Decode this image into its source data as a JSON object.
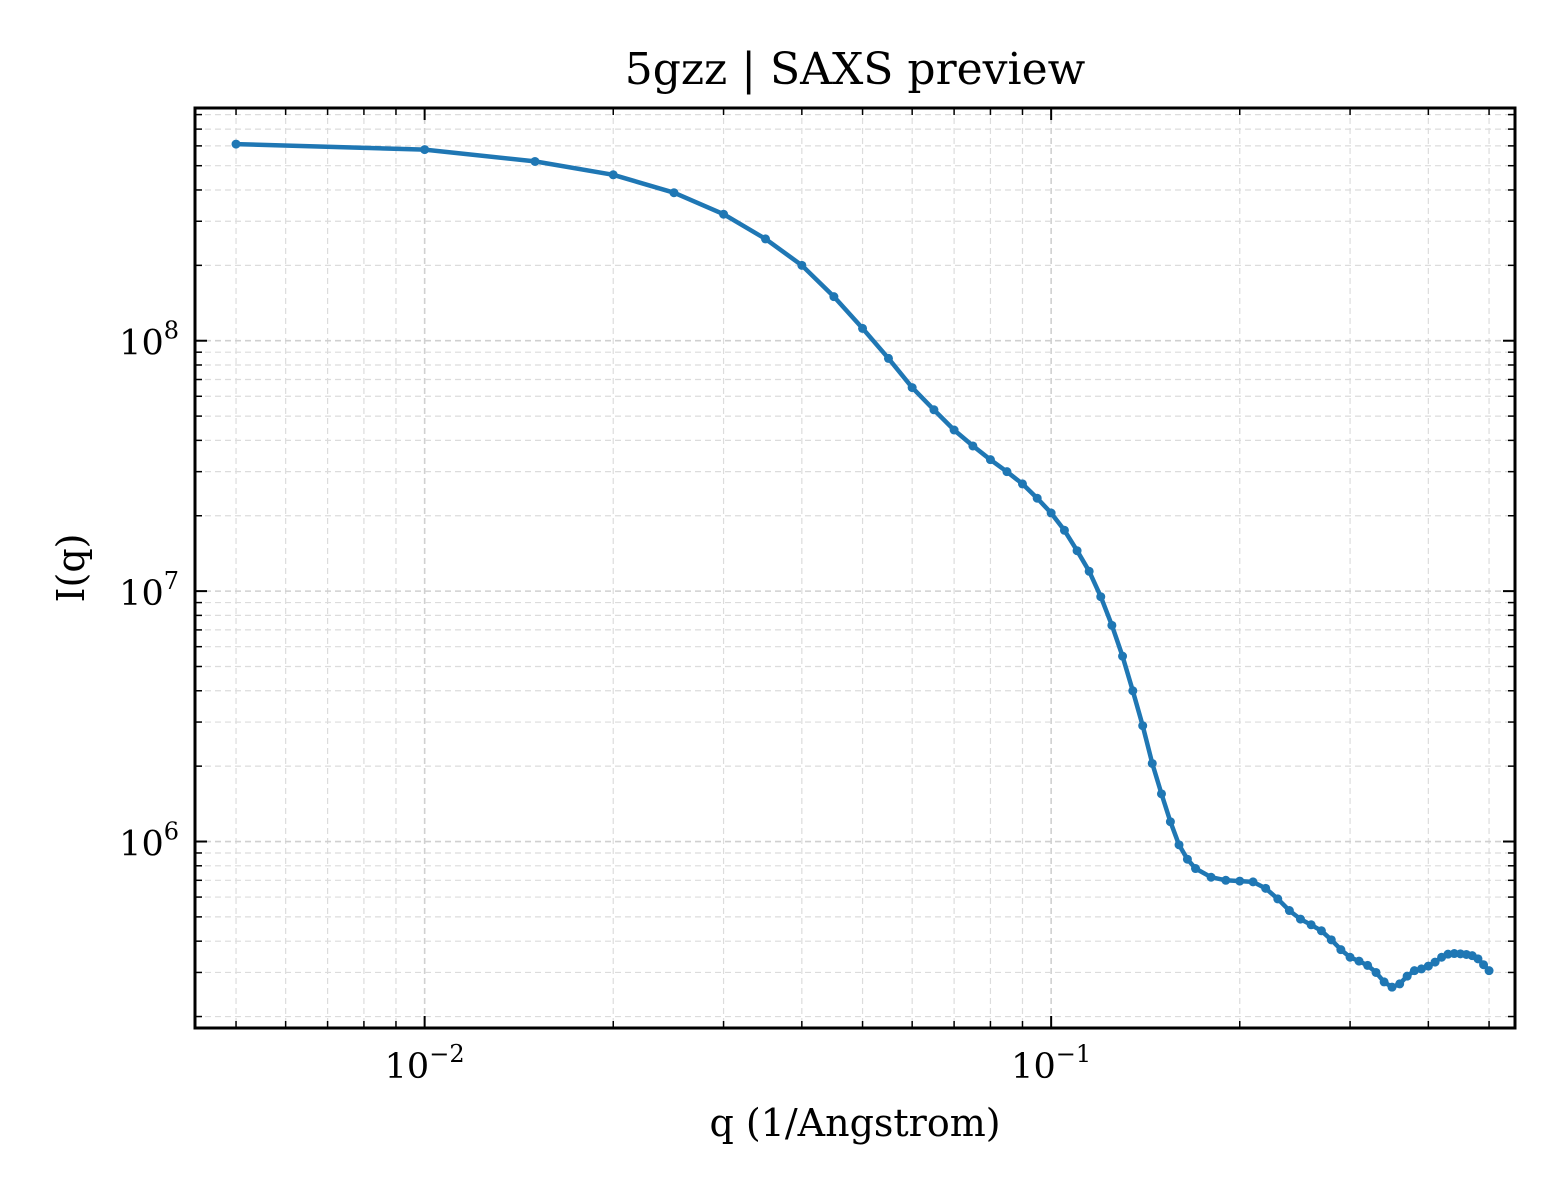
{
  "chart_data": {
    "type": "line",
    "title": "5gzz | SAXS preview",
    "xlabel": "q (1/Angstrom)",
    "ylabel": "I(q)",
    "xscale": "log",
    "yscale": "log",
    "xlim": [
      0.0043,
      0.55
    ],
    "ylim": [
      180000,
      850000000
    ],
    "grid": true,
    "legend": "none",
    "line_color": "#1f77b4",
    "x_ticks": [
      {
        "value": 0.01,
        "base": "10",
        "exp": "−2"
      },
      {
        "value": 0.1,
        "base": "10",
        "exp": "−1"
      }
    ],
    "y_ticks": [
      {
        "value": 1000000,
        "base": "10",
        "exp": "6"
      },
      {
        "value": 10000000,
        "base": "10",
        "exp": "7"
      },
      {
        "value": 100000000,
        "base": "10",
        "exp": "8"
      }
    ],
    "series": [
      {
        "x": [
          0.005,
          0.01,
          0.015,
          0.02,
          0.025,
          0.03,
          0.035,
          0.04,
          0.045,
          0.05,
          0.055,
          0.06,
          0.065,
          0.07,
          0.075,
          0.08,
          0.085,
          0.09,
          0.095,
          0.1,
          0.105,
          0.11,
          0.115,
          0.12,
          0.125,
          0.13,
          0.135,
          0.14,
          0.145,
          0.15,
          0.155,
          0.16,
          0.165,
          0.17,
          0.18,
          0.19,
          0.2,
          0.21,
          0.22,
          0.23,
          0.24,
          0.25,
          0.26,
          0.27,
          0.28,
          0.29,
          0.3,
          0.31,
          0.32,
          0.33,
          0.34,
          0.35,
          0.36,
          0.37,
          0.38,
          0.39,
          0.4,
          0.41,
          0.42,
          0.43,
          0.44,
          0.45,
          0.46,
          0.47,
          0.48,
          0.49,
          0.5
        ],
        "y": [
          610000000,
          580000000,
          520000000,
          460000000,
          390000000,
          320000000,
          255000000,
          200000000,
          150000000,
          112000000,
          85000000,
          65000000,
          53000000,
          44000000,
          38000000,
          33500000,
          30000000,
          26800000,
          23500000,
          20500000,
          17500000,
          14500000,
          12000000,
          9500000,
          7300000,
          5500000,
          4000000,
          2900000,
          2050000,
          1550000,
          1200000,
          970000,
          850000,
          780000,
          720000,
          700000,
          695000,
          690000,
          650000,
          590000,
          530000,
          490000,
          465000,
          440000,
          405000,
          370000,
          345000,
          333000,
          320000,
          300000,
          275000,
          262000,
          270000,
          290000,
          305000,
          310000,
          318000,
          330000,
          345000,
          355000,
          357000,
          356000,
          354000,
          350000,
          340000,
          322000,
          305000
        ]
      }
    ]
  }
}
